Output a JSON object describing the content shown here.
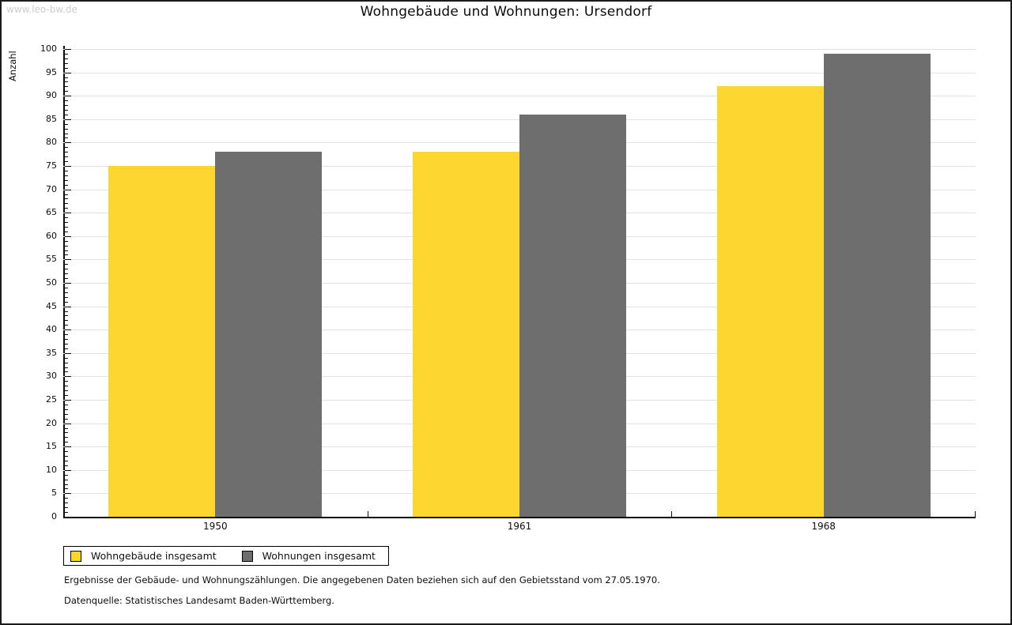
{
  "watermark": "www.leo-bw.de",
  "title": "Wohngebäude und Wohnungen: Ursendorf",
  "chart_data": {
    "type": "bar",
    "title": "Wohngebäude und Wohnungen: Ursendorf",
    "xlabel": "",
    "ylabel": "Anzahl",
    "categories": [
      "1950",
      "1961",
      "1968"
    ],
    "series": [
      {
        "name": "Wohngebäude insgesamt",
        "color": "#fdd72f",
        "values": [
          75,
          78,
          92
        ]
      },
      {
        "name": "Wohnungen insgesamt",
        "color": "#6e6e6e",
        "values": [
          78,
          86,
          99
        ]
      }
    ],
    "ylim": [
      0,
      100
    ],
    "y_major_step": 5,
    "y_minor_step": 1,
    "grid": true,
    "legend_position": "bottom-left"
  },
  "footer": {
    "line1": "Ergebnisse der Gebäude- und Wohnungszählungen. Die angegebenen Daten beziehen sich auf den Gebietsstand vom 27.05.1970.",
    "line2": "Datenquelle: Statistisches Landesamt Baden-Württemberg."
  },
  "colors": {
    "series1": "#fdd72f",
    "series2": "#6e6e6e",
    "gridline": "#e2e2e2",
    "axis": "#0d0d0d",
    "watermark": "#cdcdcd",
    "frame": "#1a1a1a"
  }
}
